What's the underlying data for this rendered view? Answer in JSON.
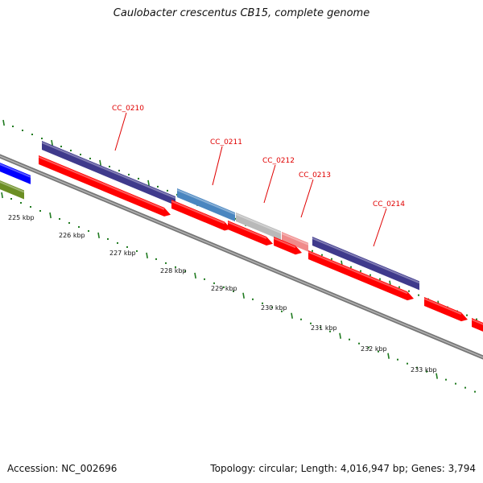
{
  "title": "Caulobacter crescentus CB15, complete genome",
  "footer": {
    "accession": "Accession: NC_002696",
    "summary": "Topology: circular; Length: 4,016,947 bp; Genes: 3,794"
  },
  "colors": {
    "backbone": "#8a8a8a",
    "cds_forward": "#ff0000",
    "tick": "#1f7a1f",
    "label": "#e00000",
    "gene_purple": "#3f3a8c",
    "gene_blue": "#4a86c0",
    "gene_gray": "#b9b9b9",
    "gene_pink": "#f08a8a",
    "gene_bright_blue": "#0000ff",
    "gene_olive": "#6b8e23"
  },
  "scale": {
    "unit": "kbp",
    "tick_labels": [
      "225 kbp",
      "226 kbp",
      "227 kbp",
      "228 kbp",
      "229 kbp",
      "230 kbp",
      "231 kbp",
      "232 kbp",
      "233 kbp"
    ]
  },
  "genes": [
    {
      "name": "CC_0210",
      "track": "outer",
      "color": "gene_purple"
    },
    {
      "name": "CC_0211",
      "track": "outer",
      "color": "gene_blue"
    },
    {
      "name": "CC_0212",
      "track": "outer",
      "color": "gene_gray"
    },
    {
      "name": "CC_0213",
      "track": "outer",
      "color": "gene_pink"
    },
    {
      "name": "CC_0214",
      "track": "outer",
      "color": "gene_purple"
    }
  ]
}
